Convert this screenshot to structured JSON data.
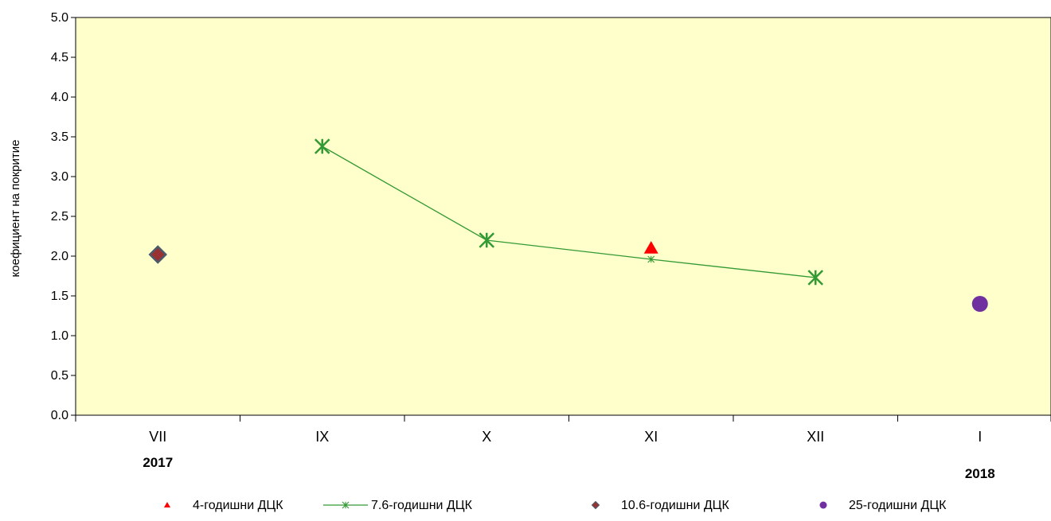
{
  "chart_data": {
    "type": "line",
    "ylabel": "коефициент на покритие",
    "xlabel": "",
    "title": "",
    "ylim": [
      0,
      5
    ],
    "y_ticks": [
      "0.0",
      "0.5",
      "1.0",
      "1.5",
      "2.0",
      "2.5",
      "3.0",
      "3.5",
      "4.0",
      "4.5",
      "5.0"
    ],
    "categories": [
      "VII",
      "IX",
      "X",
      "XI",
      "XII",
      "I"
    ],
    "year_labels": [
      {
        "text": "2017",
        "category": "VII"
      },
      {
        "text": "2018",
        "category": "I"
      }
    ],
    "grid": false,
    "plot_background": "#FFFFCC",
    "legend_position": "bottom",
    "series": [
      {
        "name": "4-годишни ДЦК",
        "marker": "triangle",
        "line": false,
        "color": "#FF0000",
        "values": [
          null,
          null,
          null,
          2.1,
          null,
          null
        ]
      },
      {
        "name": "7.6-годишни ДЦК",
        "marker": "star",
        "line": true,
        "color": "#339933",
        "values": [
          null,
          3.38,
          2.2,
          1.96,
          1.73,
          null
        ]
      },
      {
        "name": "10.6-годишни ДЦК",
        "marker": "diamond",
        "line": false,
        "color": "#993333",
        "values": [
          2.02,
          null,
          null,
          null,
          null,
          null
        ]
      },
      {
        "name": "25-годишни ДЦК",
        "marker": "circle",
        "line": false,
        "color": "#7030A0",
        "values": [
          null,
          null,
          null,
          null,
          null,
          1.4
        ]
      }
    ]
  }
}
